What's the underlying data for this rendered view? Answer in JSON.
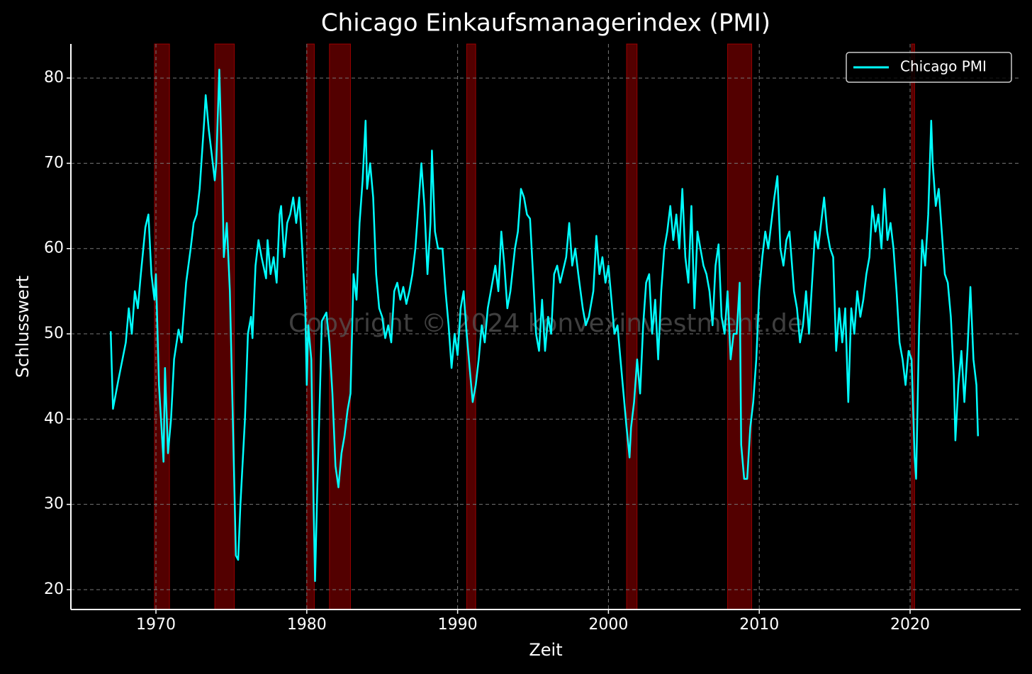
{
  "chart_data": {
    "type": "line",
    "title": "Chicago Einkaufsmanagerindex (PMI)",
    "xlabel": "Zeit",
    "ylabel": "Schlusswert",
    "annotation": "Copyright © 2024 konvexinvestment.de",
    "x": [
      1967.0,
      1967.15,
      1967.5,
      1968.0,
      1968.2,
      1968.4,
      1968.6,
      1968.8,
      1969.0,
      1969.3,
      1969.5,
      1969.7,
      1969.9,
      1970.0,
      1970.2,
      1970.5,
      1970.6,
      1970.8,
      1971.0,
      1971.2,
      1971.5,
      1971.7,
      1972.0,
      1972.3,
      1972.5,
      1972.7,
      1972.9,
      1973.2,
      1973.3,
      1973.5,
      1973.7,
      1973.9,
      1974.0,
      1974.2,
      1974.4,
      1974.5,
      1974.7,
      1974.9,
      1975.1,
      1975.3,
      1975.45,
      1975.6,
      1975.9,
      1976.1,
      1976.3,
      1976.4,
      1976.6,
      1976.8,
      1977.0,
      1977.3,
      1977.4,
      1977.6,
      1977.8,
      1978.0,
      1978.2,
      1978.3,
      1978.5,
      1978.7,
      1978.9,
      1979.1,
      1979.3,
      1979.5,
      1979.7,
      1979.9,
      1980.0,
      1980.1,
      1980.3,
      1980.45,
      1980.55,
      1980.7,
      1980.9,
      1981.0,
      1981.3,
      1981.5,
      1981.7,
      1981.9,
      1982.1,
      1982.3,
      1982.5,
      1982.7,
      1982.9,
      1983.1,
      1983.3,
      1983.5,
      1983.7,
      1983.9,
      1984.0,
      1984.2,
      1984.4,
      1984.6,
      1984.8,
      1985.0,
      1985.2,
      1985.4,
      1985.6,
      1985.8,
      1986.0,
      1986.2,
      1986.4,
      1986.6,
      1986.8,
      1987.0,
      1987.2,
      1987.4,
      1987.6,
      1987.8,
      1988.0,
      1988.2,
      1988.3,
      1988.5,
      1988.7,
      1989.0,
      1989.2,
      1989.4,
      1989.6,
      1989.8,
      1990.0,
      1990.2,
      1990.4,
      1990.6,
      1990.8,
      1991.0,
      1991.2,
      1991.4,
      1991.6,
      1991.8,
      1992.0,
      1992.3,
      1992.5,
      1992.7,
      1992.9,
      1993.1,
      1993.3,
      1993.5,
      1993.8,
      1994.0,
      1994.2,
      1994.4,
      1994.6,
      1994.8,
      1995.0,
      1995.2,
      1995.4,
      1995.6,
      1995.8,
      1996.0,
      1996.2,
      1996.4,
      1996.6,
      1996.8,
      1997.0,
      1997.2,
      1997.4,
      1997.6,
      1997.8,
      1998.0,
      1998.3,
      1998.5,
      1998.7,
      1999.0,
      1999.2,
      1999.4,
      1999.6,
      1999.8,
      2000.0,
      2000.2,
      2000.4,
      2000.6,
      2000.8,
      2001.0,
      2001.2,
      2001.4,
      2001.5,
      2001.7,
      2001.9,
      2002.1,
      2002.3,
      2002.5,
      2002.7,
      2002.9,
      2003.1,
      2003.3,
      2003.5,
      2003.7,
      2003.9,
      2004.1,
      2004.3,
      2004.5,
      2004.7,
      2004.9,
      2005.1,
      2005.3,
      2005.5,
      2005.7,
      2005.9,
      2006.1,
      2006.3,
      2006.5,
      2006.7,
      2006.9,
      2007.1,
      2007.3,
      2007.5,
      2007.7,
      2007.9,
      2008.1,
      2008.3,
      2008.5,
      2008.7,
      2008.8,
      2009.0,
      2009.2,
      2009.4,
      2009.6,
      2009.8,
      2010.0,
      2010.2,
      2010.4,
      2010.6,
      2010.8,
      2011.0,
      2011.2,
      2011.4,
      2011.6,
      2011.8,
      2012.0,
      2012.3,
      2012.5,
      2012.7,
      2012.9,
      2013.1,
      2013.3,
      2013.5,
      2013.7,
      2013.9,
      2014.1,
      2014.3,
      2014.5,
      2014.7,
      2014.9,
      2015.1,
      2015.3,
      2015.5,
      2015.7,
      2015.9,
      2016.1,
      2016.3,
      2016.5,
      2016.7,
      2016.9,
      2017.1,
      2017.3,
      2017.5,
      2017.7,
      2017.9,
      2018.1,
      2018.3,
      2018.5,
      2018.7,
      2018.9,
      2019.1,
      2019.3,
      2019.5,
      2019.7,
      2019.9,
      2020.1,
      2020.3,
      2020.4,
      2020.6,
      2020.8,
      2021.0,
      2021.2,
      2021.4,
      2021.5,
      2021.7,
      2021.9,
      2022.1,
      2022.3,
      2022.5,
      2022.7,
      2022.9,
      2023.0,
      2023.2,
      2023.4,
      2023.6,
      2023.8,
      2024.0,
      2024.2,
      2024.4,
      2024.5
    ],
    "series": [
      {
        "name": "Chicago PMI",
        "color": "#00ffff",
        "values": [
          50.3,
          41.2,
          44.5,
          49,
          53,
          50,
          55,
          53,
          57,
          62.5,
          64,
          57,
          54,
          57,
          44,
          35,
          46,
          36,
          40,
          47,
          50.5,
          49,
          56,
          60,
          63,
          64,
          67,
          75,
          78,
          74,
          71,
          68,
          70,
          81,
          68,
          59,
          63,
          55,
          40,
          24,
          23.5,
          30,
          40,
          50,
          52,
          49.5,
          58,
          61,
          59,
          56.5,
          61,
          57,
          59,
          56,
          64,
          65,
          59,
          63,
          64,
          66,
          63,
          66,
          60,
          53,
          44,
          51,
          47,
          30,
          21,
          32,
          45,
          51.5,
          52.5,
          49,
          43,
          34.5,
          32,
          36,
          38,
          41,
          43,
          57,
          54,
          63,
          68,
          75,
          67,
          70,
          66,
          57,
          53,
          52,
          49.5,
          51,
          49,
          55,
          56,
          54,
          55.5,
          53.5,
          55,
          57,
          60,
          65,
          70,
          65,
          57,
          63,
          71.5,
          62,
          60,
          60,
          55,
          51,
          46,
          50,
          47.5,
          53,
          55,
          50,
          46,
          42,
          44,
          47,
          51,
          49,
          53,
          56,
          58,
          55,
          62,
          58,
          53,
          55,
          60,
          62,
          67,
          66,
          64,
          63.5,
          57,
          50,
          48,
          54,
          48,
          52,
          50,
          57,
          58,
          56,
          57.5,
          59,
          63,
          58,
          60,
          57,
          53,
          51,
          52,
          55,
          61.5,
          57,
          59,
          56,
          58,
          54,
          50,
          51,
          47,
          43,
          39,
          35.5,
          39,
          42,
          47,
          43,
          51,
          56,
          57,
          50,
          54,
          47,
          55,
          60,
          62,
          65,
          61,
          64,
          60,
          67,
          59,
          56,
          65,
          53,
          62,
          60,
          58,
          57,
          55,
          51,
          58,
          60.5,
          52,
          50,
          55,
          47,
          50,
          50,
          56,
          37,
          33,
          33,
          39,
          42,
          47,
          55,
          59,
          62,
          60,
          63,
          66,
          68.5,
          60,
          58,
          61,
          62,
          55,
          53,
          49,
          51,
          55,
          50,
          56,
          62,
          60,
          63,
          66,
          62,
          60,
          59,
          48,
          53,
          49,
          53,
          42,
          53,
          50,
          55,
          52,
          54,
          57,
          59,
          65,
          62,
          64,
          60,
          67,
          61,
          63,
          60,
          55,
          49,
          47,
          44,
          48,
          47,
          35.5,
          33,
          51,
          61,
          58,
          64,
          75,
          70,
          65,
          67,
          62,
          57,
          56,
          52,
          45,
          37.5,
          44,
          48,
          42,
          48,
          55.5,
          47,
          44,
          38
        ]
      }
    ],
    "recessions": [
      [
        1969.9,
        1970.9
      ],
      [
        1973.9,
        1975.2
      ],
      [
        1980.0,
        1980.5
      ],
      [
        1981.5,
        1982.9
      ],
      [
        1990.6,
        1991.2
      ],
      [
        2001.2,
        2001.9
      ],
      [
        2007.9,
        2009.5
      ],
      [
        2020.1,
        2020.3
      ]
    ],
    "recession_color": "#8b0000",
    "xlim": [
      1964.36,
      2027.33
    ],
    "ylim": [
      17.67,
      84.0
    ],
    "xticks": [
      1970,
      1980,
      1990,
      2000,
      2010,
      2020
    ],
    "yticks": [
      20,
      30,
      40,
      50,
      60,
      70,
      80
    ],
    "grid": true,
    "legend": "upper right"
  }
}
